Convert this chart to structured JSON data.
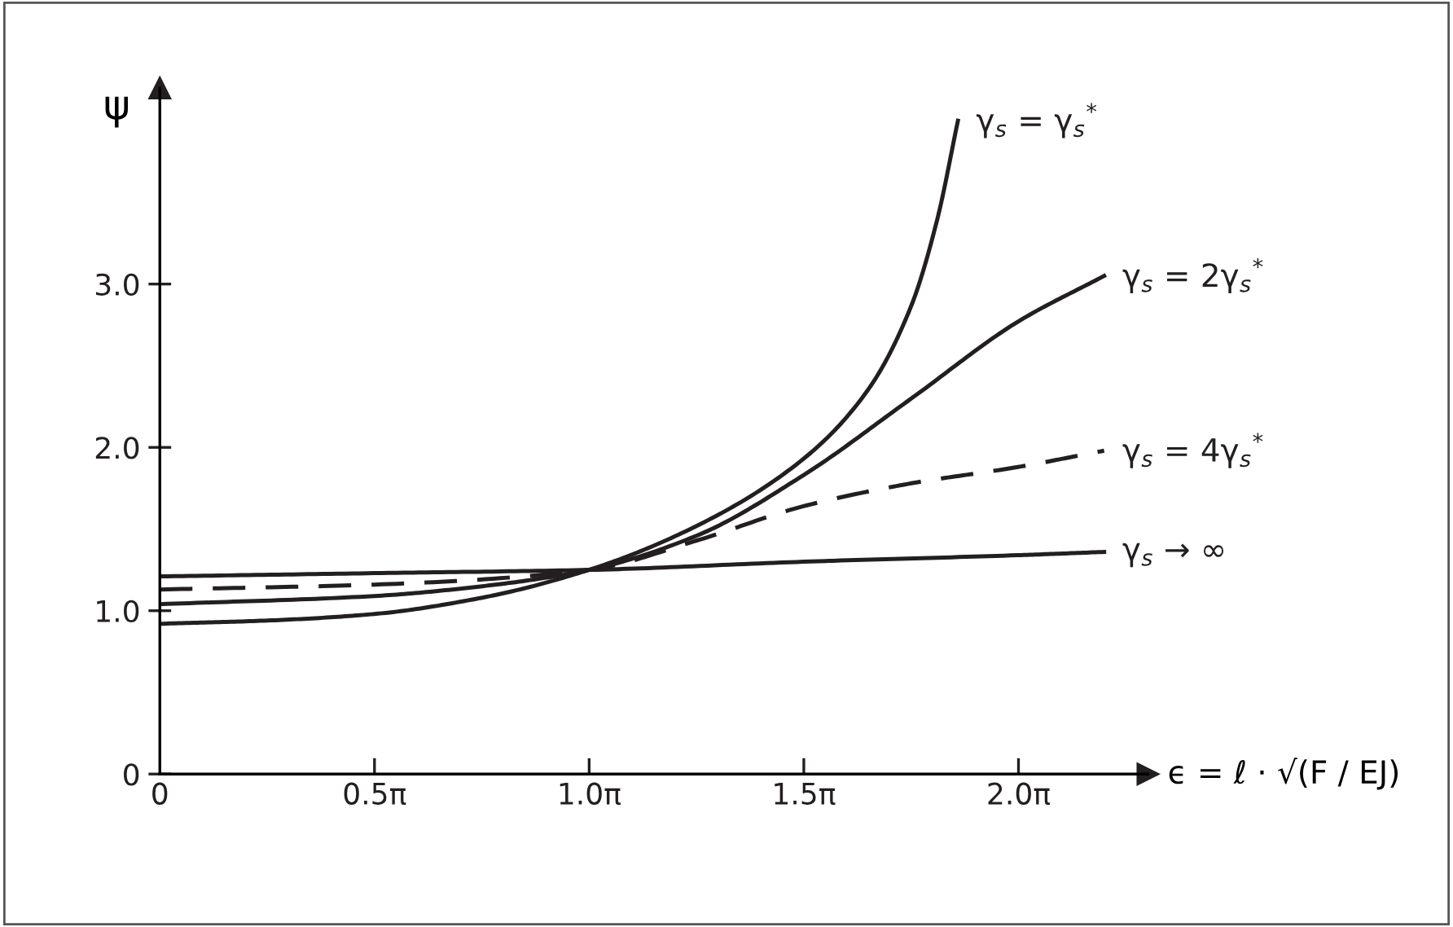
{
  "chart_data": {
    "type": "line",
    "xlabel": "ϵ = ℓ · √(F / EJ)",
    "ylabel": "ψ",
    "xlim": [
      0,
      7.23
    ],
    "ylim": [
      0,
      4.2
    ],
    "xticks": [
      0,
      {
        "value": 1.5708,
        "label": "0.5π"
      },
      {
        "value": 3.1416,
        "label": "1.0π"
      },
      {
        "value": 4.7124,
        "label": "1.5π"
      },
      {
        "value": 6.2832,
        "label": "2.0π"
      }
    ],
    "yticks": [
      0,
      {
        "value": 1,
        "label": "1.0"
      },
      {
        "value": 2,
        "label": "2.0"
      },
      {
        "value": 3,
        "label": "3.0"
      }
    ],
    "grid": false,
    "legend": false,
    "series": [
      {
        "name": "γ$_{s}$ = γ$_{s}$$^{*}$",
        "color": "#231f20",
        "line_style": "solid",
        "x": [
          0,
          0.79,
          1.57,
          2.36,
          3.14,
          3.93,
          4.71,
          5.18,
          5.5,
          5.69,
          5.84
        ],
        "values": [
          0.92,
          0.94,
          0.98,
          1.08,
          1.25,
          1.52,
          1.93,
          2.35,
          2.87,
          3.4,
          4.0
        ]
      },
      {
        "name": "γ$_{s}$ = 2γ$_{s}$$^{*}$",
        "color": "#231f20",
        "line_style": "solid",
        "x": [
          0,
          1.57,
          2.36,
          3.14,
          3.93,
          4.71,
          5.5,
          6.28,
          6.91
        ],
        "values": [
          1.04,
          1.09,
          1.15,
          1.25,
          1.46,
          1.83,
          2.3,
          2.77,
          3.05
        ]
      },
      {
        "name": "γ$_{s}$ = 4γ$_{s}$$^{*}$",
        "color": "#231f20",
        "line_style": "dashed",
        "x": [
          0,
          1.57,
          3.14,
          3.93,
          4.71,
          5.5,
          6.28,
          6.91
        ],
        "values": [
          1.13,
          1.16,
          1.25,
          1.43,
          1.64,
          1.78,
          1.88,
          1.98
        ]
      },
      {
        "name": "γ$_{s}$ → ∞",
        "color": "#231f20",
        "line_style": "solid",
        "x": [
          0,
          1.57,
          3.14,
          4.71,
          6.28,
          6.91
        ],
        "values": [
          1.21,
          1.23,
          1.25,
          1.3,
          1.34,
          1.36
        ]
      }
    ]
  }
}
